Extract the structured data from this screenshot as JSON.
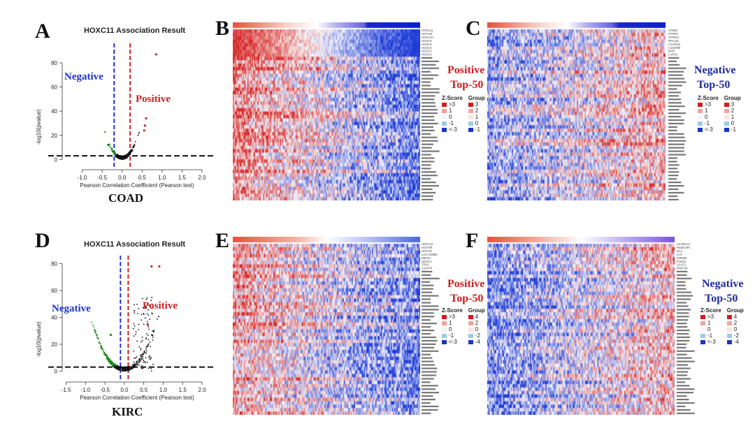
{
  "panels": {
    "A": "A",
    "B": "B",
    "C": "C",
    "D": "D",
    "E": "E",
    "F": "F"
  },
  "volcano": [
    {
      "id": "coad",
      "title": "HOXC11 Association Result",
      "cancer": "COAD",
      "xlabel": "Pearson Correlation Coefficient (Pearson test)",
      "ylabel": "-log10(pvalue)",
      "negative_label": "Negative",
      "positive_label": "Positive",
      "colors": {
        "negative": "#1a33cc",
        "positive": "#cc2222"
      }
    },
    {
      "id": "kirc",
      "title": "HOXC11 Association Result",
      "cancer": "KIRC",
      "xlabel": "Pearson Correlation Coefficient (Pearson test)",
      "ylabel": "-log10(pvalue)",
      "negative_label": "Negative",
      "positive_label": "Positive",
      "colors": {
        "negative": "#1a33cc",
        "positive": "#cc2222"
      }
    }
  ],
  "heatmap_labels": {
    "B": [
      "Positive",
      "Top-50"
    ],
    "C": [
      "Negative",
      "Top-50"
    ],
    "E": [
      "Positive",
      "Top-50"
    ],
    "F": [
      "Negative",
      "Top-50"
    ]
  },
  "legend_coad": {
    "zscore_title": "Z-Score",
    "group_title": "Group",
    "zscore_items": [
      ">3",
      "1",
      "0",
      "-1",
      "<-3"
    ],
    "group_items": [
      "3",
      "2",
      "1",
      "0",
      "-1"
    ]
  },
  "legend_kirc": {
    "zscore_title": "Z-Score",
    "group_title": "Group",
    "zscore_items": [
      ">3",
      "1",
      "0",
      "-1",
      "<-3"
    ],
    "group_items": [
      "4",
      "2",
      "0",
      "-2",
      "-4"
    ]
  },
  "chart_data": [
    {
      "type": "scatter",
      "title": "HOXC11 Association Result",
      "subtitle": "COAD",
      "xlabel": "Pearson Correlation Coefficient (Pearson test)",
      "ylabel": "-log10(pvalue)",
      "xlim": [
        -1.5,
        2.0
      ],
      "ylim": [
        -5,
        95
      ],
      "xticks": [
        -1.0,
        -0.5,
        0.0,
        0.5,
        1.0,
        1.5,
        2.0
      ],
      "yticks": [
        0,
        20,
        40,
        60,
        80
      ],
      "threshold_lines": {
        "x": [
          -0.2,
          0.2
        ],
        "y": 3
      },
      "highlight_points": [
        {
          "x": 0.85,
          "y": 87
        },
        {
          "x": 0.6,
          "y": 34
        },
        {
          "x": 0.57,
          "y": 28
        },
        {
          "x": 0.55,
          "y": 24
        },
        {
          "x": -0.35,
          "y": 12
        }
      ]
    },
    {
      "type": "scatter",
      "title": "HOXC11 Association Result",
      "subtitle": "KIRC",
      "xlabel": "Pearson Correlation Coefficient (Pearson test)",
      "ylabel": "-log10(pvalue)",
      "xlim": [
        -1.6,
        2.0
      ],
      "ylim": [
        -5,
        85
      ],
      "xticks": [
        -1.5,
        -1.0,
        -0.5,
        0.0,
        0.5,
        1.0,
        1.5,
        2.0
      ],
      "yticks": [
        0,
        20,
        40,
        60,
        80
      ],
      "threshold_lines": {
        "x": [
          -0.1,
          0.1
        ],
        "y": 3
      },
      "highlight_points": [
        {
          "x": 0.7,
          "y": 78
        },
        {
          "x": 0.9,
          "y": 78
        },
        {
          "x": 0.6,
          "y": 35
        },
        {
          "x": -0.35,
          "y": 27
        }
      ]
    },
    {
      "type": "heatmap",
      "panel": "B",
      "title": "Positive Top-50",
      "genes_shown": [
        "HOXC11",
        "HOTAIR",
        "HOXC10",
        "HOXC9",
        "HOXC8",
        "HOXC6",
        "HOXC5",
        "HOXC4"
      ]
    },
    {
      "type": "heatmap",
      "panel": "C",
      "title": "Negative Top-50",
      "genes_shown": [
        "AFMID",
        "PTPRS",
        "ATP5C2",
        "RPL10L",
        "C1orf116",
        "C10orf99",
        "MYB",
        "LARS2"
      ]
    },
    {
      "type": "heatmap",
      "panel": "E",
      "title": "Positive Top-50",
      "genes_shown": [
        "HOXC11",
        "HOTAIR",
        "HOXC6",
        "LOC728606",
        "MEIS3",
        "HOXC4",
        "TRIO",
        "C2orf78"
      ]
    },
    {
      "type": "heatmap",
      "panel": "F",
      "title": "Negative Top-50",
      "genes_shown": [
        "SCGB1A1",
        "PDZK1IP1",
        "GLA",
        "CAT",
        "TMEM5",
        "FAM13",
        "ACAT1",
        "RNF145"
      ]
    }
  ]
}
